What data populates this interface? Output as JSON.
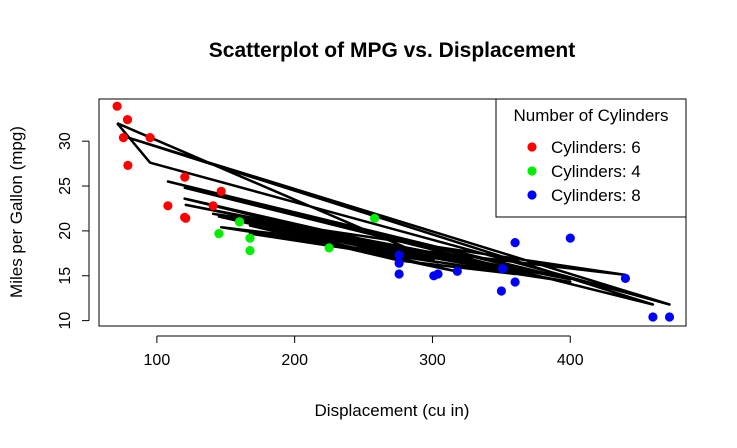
{
  "chart_data": {
    "type": "scatter",
    "title": "Scatterplot of MPG vs. Displacement",
    "xlabel": "Displacement (cu in)",
    "ylabel": "Miles per Gallon (mpg)",
    "xlim": [
      58,
      484
    ],
    "ylim": [
      9.4,
      34.7
    ],
    "xticks": [
      100,
      200,
      300,
      400
    ],
    "yticks": [
      10,
      15,
      20,
      25,
      30
    ],
    "grid": false,
    "legend": {
      "title": "Number of Cylinders",
      "position": "top-right",
      "entries": [
        {
          "label": "Cylinders: 6",
          "color": "#ff0000"
        },
        {
          "label": "Cylinders: 4",
          "color": "#00ee00"
        },
        {
          "label": "Cylinders: 8",
          "color": "#0000ff"
        }
      ]
    },
    "series": [
      {
        "color": "#ff0000",
        "points": [
          [
            71.1,
            33.9
          ],
          [
            78.7,
            32.4
          ],
          [
            75.7,
            30.4
          ],
          [
            95.1,
            30.4
          ],
          [
            79.0,
            27.3
          ],
          [
            120.3,
            26.0
          ],
          [
            146.7,
            24.4
          ],
          [
            140.8,
            22.8
          ],
          [
            108.0,
            22.8
          ],
          [
            120.1,
            21.5
          ],
          [
            121.0,
            21.4
          ]
        ]
      },
      {
        "color": "#00ee00",
        "points": [
          [
            258.0,
            21.4
          ],
          [
            160.0,
            21.0
          ],
          [
            160.0,
            21.0
          ],
          [
            145.0,
            19.7
          ],
          [
            167.6,
            19.2
          ],
          [
            225.0,
            18.1
          ],
          [
            167.6,
            17.8
          ]
        ]
      },
      {
        "color": "#0000ff",
        "points": [
          [
            400.0,
            19.2
          ],
          [
            360.0,
            18.7
          ],
          [
            275.8,
            17.3
          ],
          [
            275.8,
            16.4
          ],
          [
            351.0,
            15.8
          ],
          [
            318.0,
            15.5
          ],
          [
            304.0,
            15.2
          ],
          [
            275.8,
            15.2
          ],
          [
            301.0,
            15.0
          ],
          [
            440.0,
            14.7
          ],
          [
            360.0,
            14.3
          ],
          [
            350.0,
            13.3
          ],
          [
            460.0,
            10.4
          ],
          [
            472.0,
            10.4
          ]
        ]
      }
    ],
    "line": {
      "color": "#000000",
      "points": [
        [
          71.1,
          32.0
        ],
        [
          95.1,
          27.6
        ],
        [
          472.0,
          11.8
        ],
        [
          79.0,
          30.4
        ],
        [
          460.0,
          11.8
        ],
        [
          120.3,
          24.8
        ],
        [
          360.0,
          16.0
        ],
        [
          108.0,
          25.5
        ],
        [
          400.0,
          14.6
        ],
        [
          121.0,
          22.9
        ],
        [
          350.0,
          15.9
        ],
        [
          140.8,
          21.9
        ],
        [
          440.0,
          15.1
        ],
        [
          146.7,
          20.4
        ],
        [
          300.0,
          16.8
        ],
        [
          160.0,
          21.2
        ],
        [
          351.0,
          15.6
        ],
        [
          225.0,
          19.1
        ],
        [
          400.0,
          14.3
        ],
        [
          167.6,
          19.7
        ],
        [
          304.0,
          16.5
        ],
        [
          145.0,
          21.6
        ],
        [
          320.0,
          15.4
        ],
        [
          258.0,
          17.4
        ],
        [
          167.6,
          20.6
        ],
        [
          275.8,
          16.7
        ],
        [
          360.0,
          15.2
        ],
        [
          120.1,
          23.6
        ],
        [
          301.0,
          16.8
        ],
        [
          71.1,
          32.0
        ]
      ]
    }
  }
}
